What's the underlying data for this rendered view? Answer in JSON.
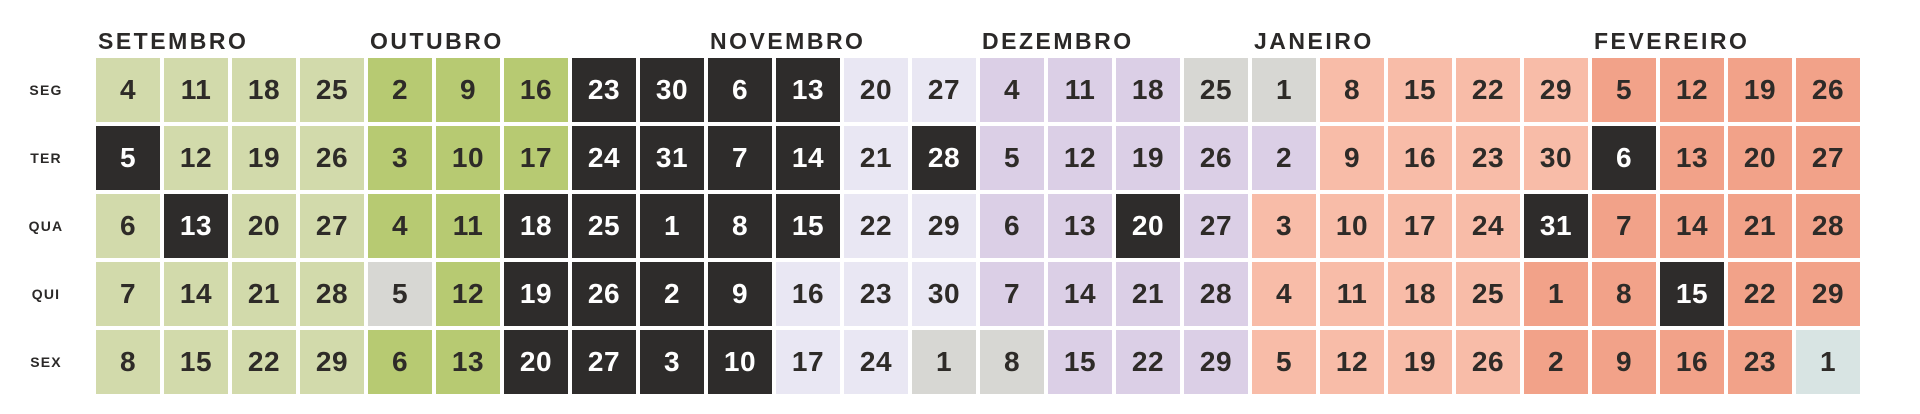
{
  "chart_data": {
    "type": "heatmap",
    "description_hint": "weekly school-year calendar grid, weekdays by weeks",
    "weekday_labels": [
      "SEG",
      "TER",
      "QUA",
      "QUI",
      "SEX"
    ],
    "months": [
      {
        "label": "SETEMBRO",
        "col": 0
      },
      {
        "label": "OUTUBRO",
        "col": 4
      },
      {
        "label": "NOVEMBRO",
        "col": 9
      },
      {
        "label": "DEZEMBRO",
        "col": 13
      },
      {
        "label": "JANEIRO",
        "col": 17
      },
      {
        "label": "FEVEREIRO",
        "col": 22
      }
    ],
    "colors": {
      "sep": "#d2daab",
      "oct": "#b7ca72",
      "nov": "#e9e7f3",
      "dec": "#dbcfe6",
      "jan": "#f8bca8",
      "feb": "#f2a289",
      "mar": "#d8e4e3",
      "hol": "#d7d7d3",
      "blk": "#2e2c2b",
      "day_text": "#2e2b28",
      "day_text_inverse": "#ffffff",
      "background": "#ffffff"
    },
    "rows": [
      {
        "label": "SEG",
        "cells": [
          {
            "d": "4",
            "c": "sep"
          },
          {
            "d": "11",
            "c": "sep"
          },
          {
            "d": "18",
            "c": "sep"
          },
          {
            "d": "25",
            "c": "sep"
          },
          {
            "d": "2",
            "c": "oct"
          },
          {
            "d": "9",
            "c": "oct"
          },
          {
            "d": "16",
            "c": "oct"
          },
          {
            "d": "23",
            "c": "blk"
          },
          {
            "d": "30",
            "c": "blk"
          },
          {
            "d": "6",
            "c": "blk"
          },
          {
            "d": "13",
            "c": "blk"
          },
          {
            "d": "20",
            "c": "nov"
          },
          {
            "d": "27",
            "c": "nov"
          },
          {
            "d": "4",
            "c": "dec"
          },
          {
            "d": "11",
            "c": "dec"
          },
          {
            "d": "18",
            "c": "dec"
          },
          {
            "d": "25",
            "c": "hol"
          },
          {
            "d": "1",
            "c": "hol"
          },
          {
            "d": "8",
            "c": "jan"
          },
          {
            "d": "15",
            "c": "jan"
          },
          {
            "d": "22",
            "c": "jan"
          },
          {
            "d": "29",
            "c": "jan"
          },
          {
            "d": "5",
            "c": "feb"
          },
          {
            "d": "12",
            "c": "feb"
          },
          {
            "d": "19",
            "c": "feb"
          },
          {
            "d": "26",
            "c": "feb"
          }
        ]
      },
      {
        "label": "TER",
        "cells": [
          {
            "d": "5",
            "c": "blk"
          },
          {
            "d": "12",
            "c": "sep"
          },
          {
            "d": "19",
            "c": "sep"
          },
          {
            "d": "26",
            "c": "sep"
          },
          {
            "d": "3",
            "c": "oct"
          },
          {
            "d": "10",
            "c": "oct"
          },
          {
            "d": "17",
            "c": "oct"
          },
          {
            "d": "24",
            "c": "blk"
          },
          {
            "d": "31",
            "c": "blk"
          },
          {
            "d": "7",
            "c": "blk"
          },
          {
            "d": "14",
            "c": "blk"
          },
          {
            "d": "21",
            "c": "nov"
          },
          {
            "d": "28",
            "c": "blk"
          },
          {
            "d": "5",
            "c": "dec"
          },
          {
            "d": "12",
            "c": "dec"
          },
          {
            "d": "19",
            "c": "dec"
          },
          {
            "d": "26",
            "c": "dec"
          },
          {
            "d": "2",
            "c": "dec"
          },
          {
            "d": "9",
            "c": "jan"
          },
          {
            "d": "16",
            "c": "jan"
          },
          {
            "d": "23",
            "c": "jan"
          },
          {
            "d": "30",
            "c": "jan"
          },
          {
            "d": "6",
            "c": "blk"
          },
          {
            "d": "13",
            "c": "feb"
          },
          {
            "d": "20",
            "c": "feb"
          },
          {
            "d": "27",
            "c": "feb"
          }
        ]
      },
      {
        "label": "QUA",
        "cells": [
          {
            "d": "6",
            "c": "sep"
          },
          {
            "d": "13",
            "c": "blk"
          },
          {
            "d": "20",
            "c": "sep"
          },
          {
            "d": "27",
            "c": "sep"
          },
          {
            "d": "4",
            "c": "oct"
          },
          {
            "d": "11",
            "c": "oct"
          },
          {
            "d": "18",
            "c": "blk"
          },
          {
            "d": "25",
            "c": "blk"
          },
          {
            "d": "1",
            "c": "blk"
          },
          {
            "d": "8",
            "c": "blk"
          },
          {
            "d": "15",
            "c": "blk"
          },
          {
            "d": "22",
            "c": "nov"
          },
          {
            "d": "29",
            "c": "nov"
          },
          {
            "d": "6",
            "c": "dec"
          },
          {
            "d": "13",
            "c": "dec"
          },
          {
            "d": "20",
            "c": "blk"
          },
          {
            "d": "27",
            "c": "dec"
          },
          {
            "d": "3",
            "c": "jan"
          },
          {
            "d": "10",
            "c": "jan"
          },
          {
            "d": "17",
            "c": "jan"
          },
          {
            "d": "24",
            "c": "jan"
          },
          {
            "d": "31",
            "c": "blk"
          },
          {
            "d": "7",
            "c": "feb"
          },
          {
            "d": "14",
            "c": "feb"
          },
          {
            "d": "21",
            "c": "feb"
          },
          {
            "d": "28",
            "c": "feb"
          }
        ]
      },
      {
        "label": "QUI",
        "cells": [
          {
            "d": "7",
            "c": "sep"
          },
          {
            "d": "14",
            "c": "sep"
          },
          {
            "d": "21",
            "c": "sep"
          },
          {
            "d": "28",
            "c": "sep"
          },
          {
            "d": "5",
            "c": "hol"
          },
          {
            "d": "12",
            "c": "oct"
          },
          {
            "d": "19",
            "c": "blk"
          },
          {
            "d": "26",
            "c": "blk"
          },
          {
            "d": "2",
            "c": "blk"
          },
          {
            "d": "9",
            "c": "blk"
          },
          {
            "d": "16",
            "c": "nov"
          },
          {
            "d": "23",
            "c": "nov"
          },
          {
            "d": "30",
            "c": "nov"
          },
          {
            "d": "7",
            "c": "dec"
          },
          {
            "d": "14",
            "c": "dec"
          },
          {
            "d": "21",
            "c": "dec"
          },
          {
            "d": "28",
            "c": "dec"
          },
          {
            "d": "4",
            "c": "jan"
          },
          {
            "d": "11",
            "c": "jan"
          },
          {
            "d": "18",
            "c": "jan"
          },
          {
            "d": "25",
            "c": "jan"
          },
          {
            "d": "1",
            "c": "feb"
          },
          {
            "d": "8",
            "c": "feb"
          },
          {
            "d": "15",
            "c": "blk"
          },
          {
            "d": "22",
            "c": "feb"
          },
          {
            "d": "29",
            "c": "feb"
          }
        ]
      },
      {
        "label": "SEX",
        "cells": [
          {
            "d": "8",
            "c": "sep"
          },
          {
            "d": "15",
            "c": "sep"
          },
          {
            "d": "22",
            "c": "sep"
          },
          {
            "d": "29",
            "c": "sep"
          },
          {
            "d": "6",
            "c": "oct"
          },
          {
            "d": "13",
            "c": "oct"
          },
          {
            "d": "20",
            "c": "blk"
          },
          {
            "d": "27",
            "c": "blk"
          },
          {
            "d": "3",
            "c": "blk"
          },
          {
            "d": "10",
            "c": "blk"
          },
          {
            "d": "17",
            "c": "nov"
          },
          {
            "d": "24",
            "c": "nov"
          },
          {
            "d": "1",
            "c": "hol"
          },
          {
            "d": "8",
            "c": "hol"
          },
          {
            "d": "15",
            "c": "dec"
          },
          {
            "d": "22",
            "c": "dec"
          },
          {
            "d": "29",
            "c": "dec"
          },
          {
            "d": "5",
            "c": "jan"
          },
          {
            "d": "12",
            "c": "jan"
          },
          {
            "d": "19",
            "c": "jan"
          },
          {
            "d": "26",
            "c": "jan"
          },
          {
            "d": "2",
            "c": "feb"
          },
          {
            "d": "9",
            "c": "feb"
          },
          {
            "d": "16",
            "c": "feb"
          },
          {
            "d": "23",
            "c": "feb"
          },
          {
            "d": "1",
            "c": "mar"
          }
        ]
      }
    ]
  }
}
